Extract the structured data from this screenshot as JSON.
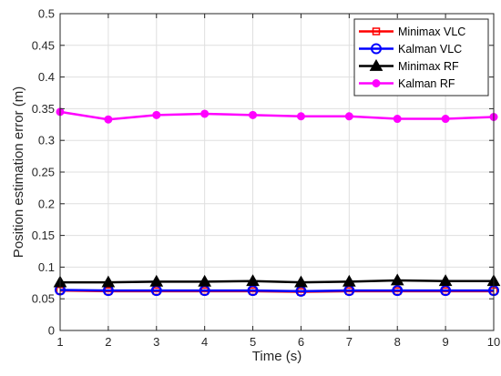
{
  "chart_data": {
    "type": "line",
    "title": "",
    "xlabel": "Time (s)",
    "ylabel": "Position estimation error (m)",
    "xlim": [
      1,
      10
    ],
    "ylim": [
      0,
      0.5
    ],
    "xticks": [
      "1",
      "2",
      "3",
      "4",
      "5",
      "6",
      "7",
      "8",
      "9",
      "10"
    ],
    "yticks": [
      "0",
      "0.05",
      "0.1",
      "0.15",
      "0.2",
      "0.25",
      "0.3",
      "0.35",
      "0.4",
      "0.45",
      "0.5"
    ],
    "grid": true,
    "legend_position": "top-right",
    "x": [
      1,
      2,
      3,
      4,
      5,
      6,
      7,
      8,
      9,
      10
    ],
    "series": [
      {
        "name": "Minimax VLC",
        "color": "#ff0000",
        "marker": "square",
        "values": [
          0.063,
          0.062,
          0.062,
          0.062,
          0.062,
          0.061,
          0.062,
          0.062,
          0.062,
          0.062
        ]
      },
      {
        "name": "Kalman VLC",
        "color": "#0000ff",
        "marker": "circle-open",
        "values": [
          0.064,
          0.063,
          0.063,
          0.063,
          0.063,
          0.062,
          0.063,
          0.063,
          0.063,
          0.063
        ]
      },
      {
        "name": "Minimax RF",
        "color": "#000000",
        "marker": "triangle",
        "values": [
          0.076,
          0.076,
          0.077,
          0.077,
          0.078,
          0.076,
          0.077,
          0.079,
          0.078,
          0.078
        ]
      },
      {
        "name": "Kalman RF",
        "color": "#ff00ff",
        "marker": "circle-filled",
        "values": [
          0.345,
          0.333,
          0.34,
          0.342,
          0.34,
          0.338,
          0.338,
          0.334,
          0.334,
          0.337
        ]
      }
    ]
  }
}
